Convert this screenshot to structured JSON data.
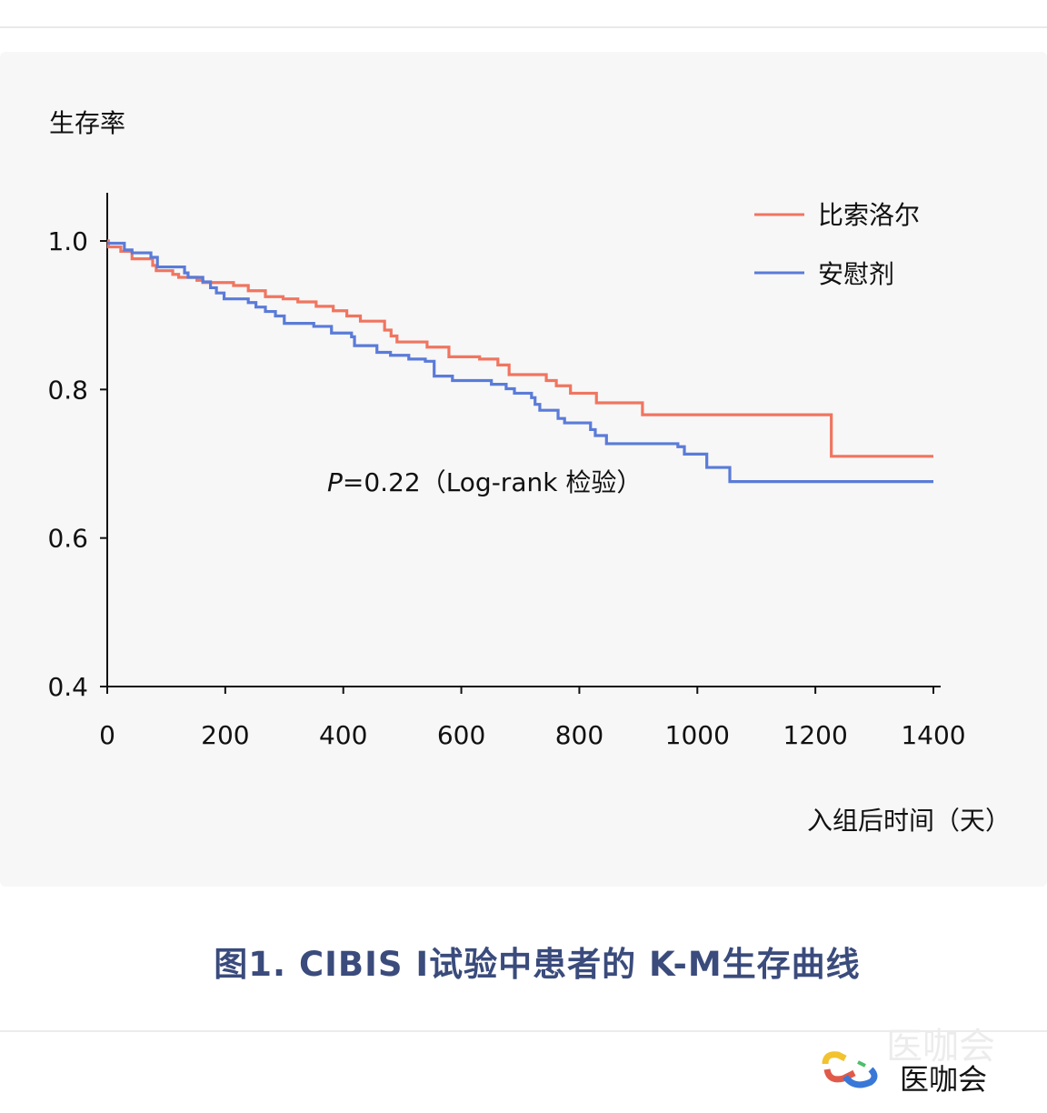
{
  "chart_data": {
    "type": "line",
    "step": true,
    "title": "",
    "xlabel": "入组后时间（天）",
    "ylabel": "生存率",
    "xlim": [
      0,
      1400
    ],
    "ylim": [
      0.4,
      1.0
    ],
    "xticks": [
      0,
      200,
      400,
      600,
      800,
      1000,
      1200,
      1400
    ],
    "yticks": [
      0.4,
      0.6,
      0.8,
      1.0
    ],
    "xtick_labels": [
      "0",
      "200",
      "400",
      "600",
      "800",
      "1000",
      "1200",
      "1400"
    ],
    "ytick_labels": [
      "0.4",
      "0.6",
      "0.8",
      "1.0"
    ],
    "grid": false,
    "legend_position": "top-right",
    "annotation": {
      "p_label": "P",
      "p_text": "=0.22（Log-rank 检验）"
    },
    "series": [
      {
        "name": "比索洛尔",
        "color": "#f07560",
        "x": [
          0,
          2,
          23,
          42,
          77,
          83,
          111,
          121,
          152,
          162,
          214,
          239,
          268,
          298,
          323,
          354,
          383,
          406,
          429,
          470,
          481,
          491,
          542,
          579,
          631,
          662,
          681,
          744,
          761,
          785,
          829,
          907,
          1227,
          1400
        ],
        "y": [
          1.0,
          0.992,
          0.986,
          0.976,
          0.967,
          0.96,
          0.955,
          0.951,
          0.947,
          0.944,
          0.94,
          0.933,
          0.925,
          0.922,
          0.918,
          0.912,
          0.906,
          0.899,
          0.892,
          0.88,
          0.872,
          0.864,
          0.857,
          0.844,
          0.841,
          0.833,
          0.82,
          0.812,
          0.805,
          0.795,
          0.782,
          0.766,
          0.71,
          0.71
        ]
      },
      {
        "name": "安慰剂",
        "color": "#5a7bd8",
        "x": [
          0,
          29,
          42,
          74,
          85,
          131,
          137,
          162,
          175,
          185,
          198,
          239,
          252,
          268,
          285,
          300,
          350,
          380,
          414,
          419,
          457,
          480,
          511,
          539,
          554,
          585,
          651,
          676,
          690,
          719,
          725,
          733,
          764,
          775,
          819,
          827,
          846,
          967,
          978,
          1016,
          1055,
          1400
        ],
        "y": [
          0.997,
          0.988,
          0.984,
          0.978,
          0.965,
          0.957,
          0.951,
          0.945,
          0.937,
          0.93,
          0.922,
          0.917,
          0.911,
          0.905,
          0.899,
          0.889,
          0.885,
          0.876,
          0.871,
          0.859,
          0.85,
          0.846,
          0.841,
          0.838,
          0.818,
          0.812,
          0.807,
          0.801,
          0.795,
          0.789,
          0.78,
          0.772,
          0.761,
          0.755,
          0.746,
          0.738,
          0.727,
          0.723,
          0.713,
          0.695,
          0.676,
          0.676
        ]
      }
    ]
  },
  "caption": "图1. CIBIS I试验中患者的 K-M生存曲线",
  "logo": {
    "text": "医咖会"
  }
}
